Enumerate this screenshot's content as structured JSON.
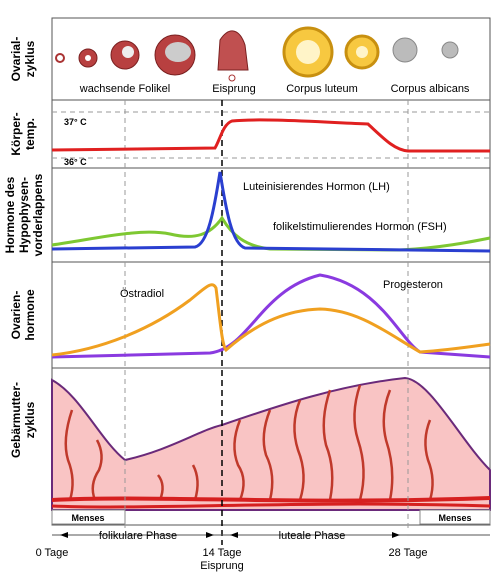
{
  "panels": [
    {
      "label": [
        "Ovarial-",
        "zyklus"
      ]
    },
    {
      "label": [
        "Körper-",
        "temp."
      ]
    },
    {
      "label": [
        "Hormone des",
        "Hypophysen-",
        "vorderlappens"
      ]
    },
    {
      "label": [
        "Ovarien-",
        "hormone"
      ]
    },
    {
      "label": [
        "Gebärmutter-",
        "zyklus"
      ]
    }
  ],
  "stages": [
    "wachsende Folikel",
    "Eisprung",
    "Corpus luteum",
    "Corpus albicans"
  ],
  "temperature": {
    "high": "37° C",
    "low": "36° C"
  },
  "hormones": {
    "lh": "Luteinisierendes Hormon (LH)",
    "fsh": "folikelstimulierendes Hormon (FSH)",
    "estradiol": "Östradiol",
    "progesterone": "Progesteron"
  },
  "menses": [
    "Menses",
    "Menses"
  ],
  "phases": [
    "folikulare Phase",
    "luteale Phase"
  ],
  "days": {
    "start": "0 Tage",
    "ovulation": "14 Tage",
    "ovulation_label": "Eisprung",
    "end": "28 Tage"
  }
}
